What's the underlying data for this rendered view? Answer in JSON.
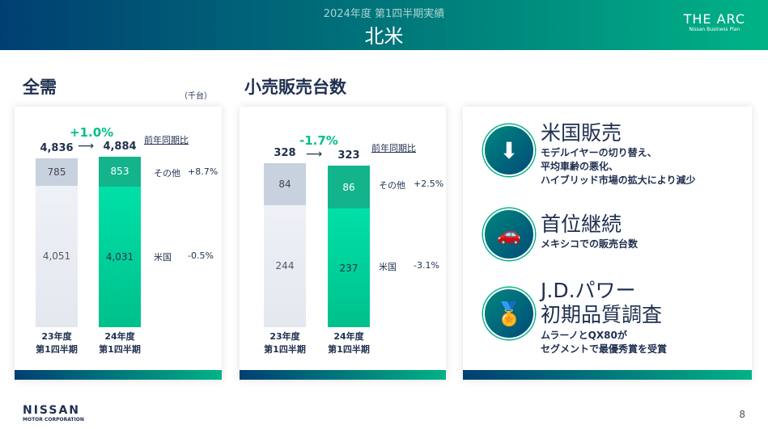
{
  "header": {
    "subtitle": "2024年度 第1四半期実績",
    "title": "北米",
    "logo_main": "THE ARC",
    "logo_sub": "Nissan Business Plan"
  },
  "unit": "（千台）",
  "chart_data": [
    {
      "type": "bar",
      "stacked": true,
      "title": "全需",
      "categories": [
        "23年度\n第1四半期",
        "24年度\n第1四半期"
      ],
      "series": [
        {
          "name": "米国",
          "values": [
            4051,
            4031
          ],
          "yoy": "-0.5%"
        },
        {
          "name": "その他",
          "values": [
            785,
            853
          ],
          "yoy": "+8.7%"
        }
      ],
      "totals": [
        "4,836",
        "4,884"
      ],
      "change": "+1.0%",
      "yoy_label": "前年同期比",
      "labels": {
        "us": [
          "4,051",
          "4,031"
        ],
        "other": [
          "785",
          "853"
        ]
      }
    },
    {
      "type": "bar",
      "stacked": true,
      "title": "小売販売台数",
      "categories": [
        "23年度\n第1四半期",
        "24年度\n第1四半期"
      ],
      "series": [
        {
          "name": "米国",
          "values": [
            244,
            237
          ],
          "yoy": "-3.1%"
        },
        {
          "name": "その他",
          "values": [
            84,
            86
          ],
          "yoy": "+2.5%"
        }
      ],
      "totals": [
        "328",
        "323"
      ],
      "change": "-1.7%",
      "yoy_label": "前年同期比",
      "labels": {
        "us": [
          "244",
          "237"
        ],
        "other": [
          "84",
          "86"
        ]
      }
    }
  ],
  "highlights": [
    {
      "icon": "down-arrow-icon",
      "title": "米国販売",
      "text": "モデルイヤーの切り替え、\n平均車齢の悪化、\nハイブリッド市場の拡大により減少"
    },
    {
      "icon": "cars-icon",
      "title": "首位継続",
      "text": "メキシコでの販売台数"
    },
    {
      "icon": "award-icon",
      "title": "J.D.パワー\n初期品質調査",
      "text": "ムラーノとQX80が\nセグメントで最優秀賞を受賞"
    }
  ],
  "footer": {
    "brand": "NISSAN",
    "corp": "MOTOR CORPORATION",
    "page": "8"
  }
}
